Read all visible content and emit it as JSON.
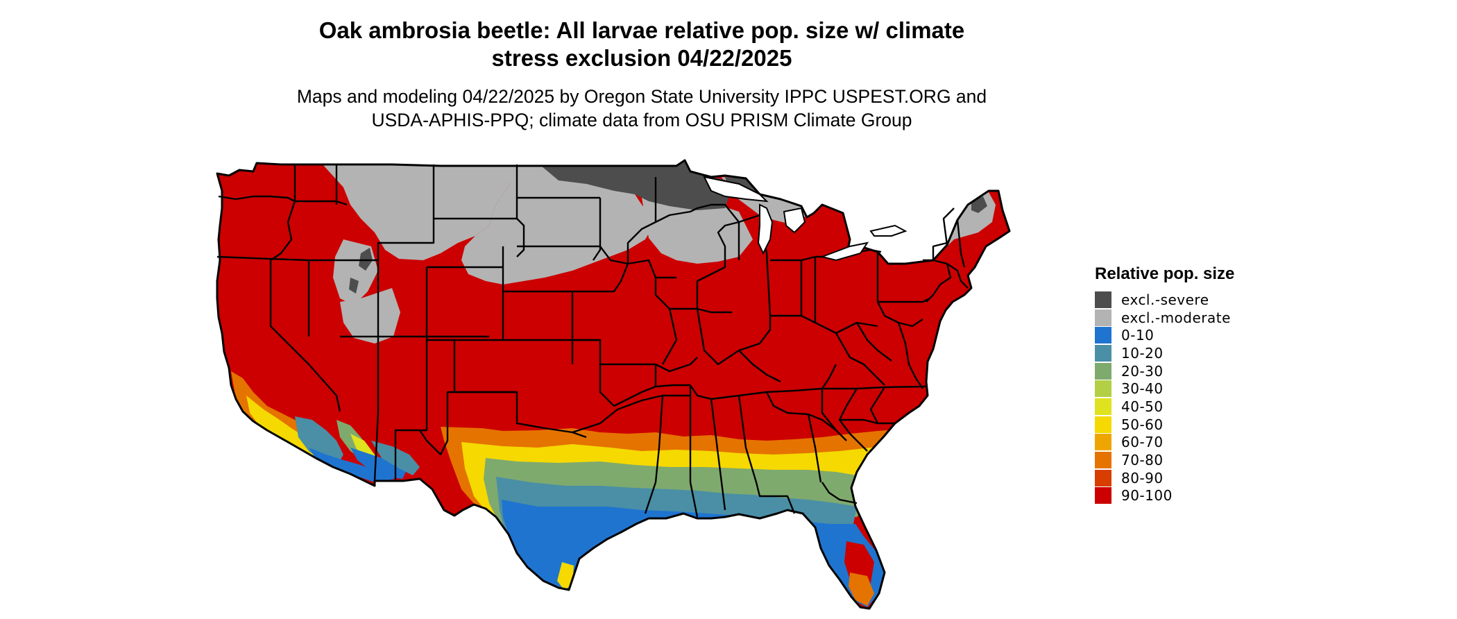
{
  "title": {
    "line1": "Oak ambrosia beetle: All larvae relative pop. size w/ climate",
    "line2": "stress exclusion 04/22/2025"
  },
  "subtitle": {
    "line1": "Maps and modeling 04/22/2025 by Oregon State University IPPC USPEST.ORG and",
    "line2": "USDA-APHIS-PPQ; climate data from OSU PRISM Climate Group"
  },
  "legend": {
    "title": "Relative pop. size",
    "items": [
      {
        "label": "excl.-severe",
        "color": "#4d4d4d"
      },
      {
        "label": "excl.-moderate",
        "color": "#b3b3b3"
      },
      {
        "label": "0-10",
        "color": "#1f74cf"
      },
      {
        "label": "10-20",
        "color": "#4a8fa6"
      },
      {
        "label": "20-30",
        "color": "#7faa6e"
      },
      {
        "label": "30-40",
        "color": "#b3cf45"
      },
      {
        "label": "40-50",
        "color": "#dfe21f"
      },
      {
        "label": "50-60",
        "color": "#f5d900"
      },
      {
        "label": "60-70",
        "color": "#efa500"
      },
      {
        "label": "70-80",
        "color": "#e57300"
      },
      {
        "label": "80-90",
        "color": "#d73e00"
      },
      {
        "label": "90-100",
        "color": "#cc0000"
      }
    ]
  },
  "map": {
    "region": "Contiguous United States",
    "colors": {
      "severe": "#4d4d4d",
      "moderate": "#b3b3b3",
      "c0_10": "#1f74cf",
      "c10_20": "#4a8fa6",
      "c20_30": "#7faa6e",
      "c40_50": "#dfe21f",
      "c50_60": "#f5d900",
      "c70_80": "#e57300",
      "c90_100": "#cc0000",
      "borders": "#000000"
    }
  }
}
